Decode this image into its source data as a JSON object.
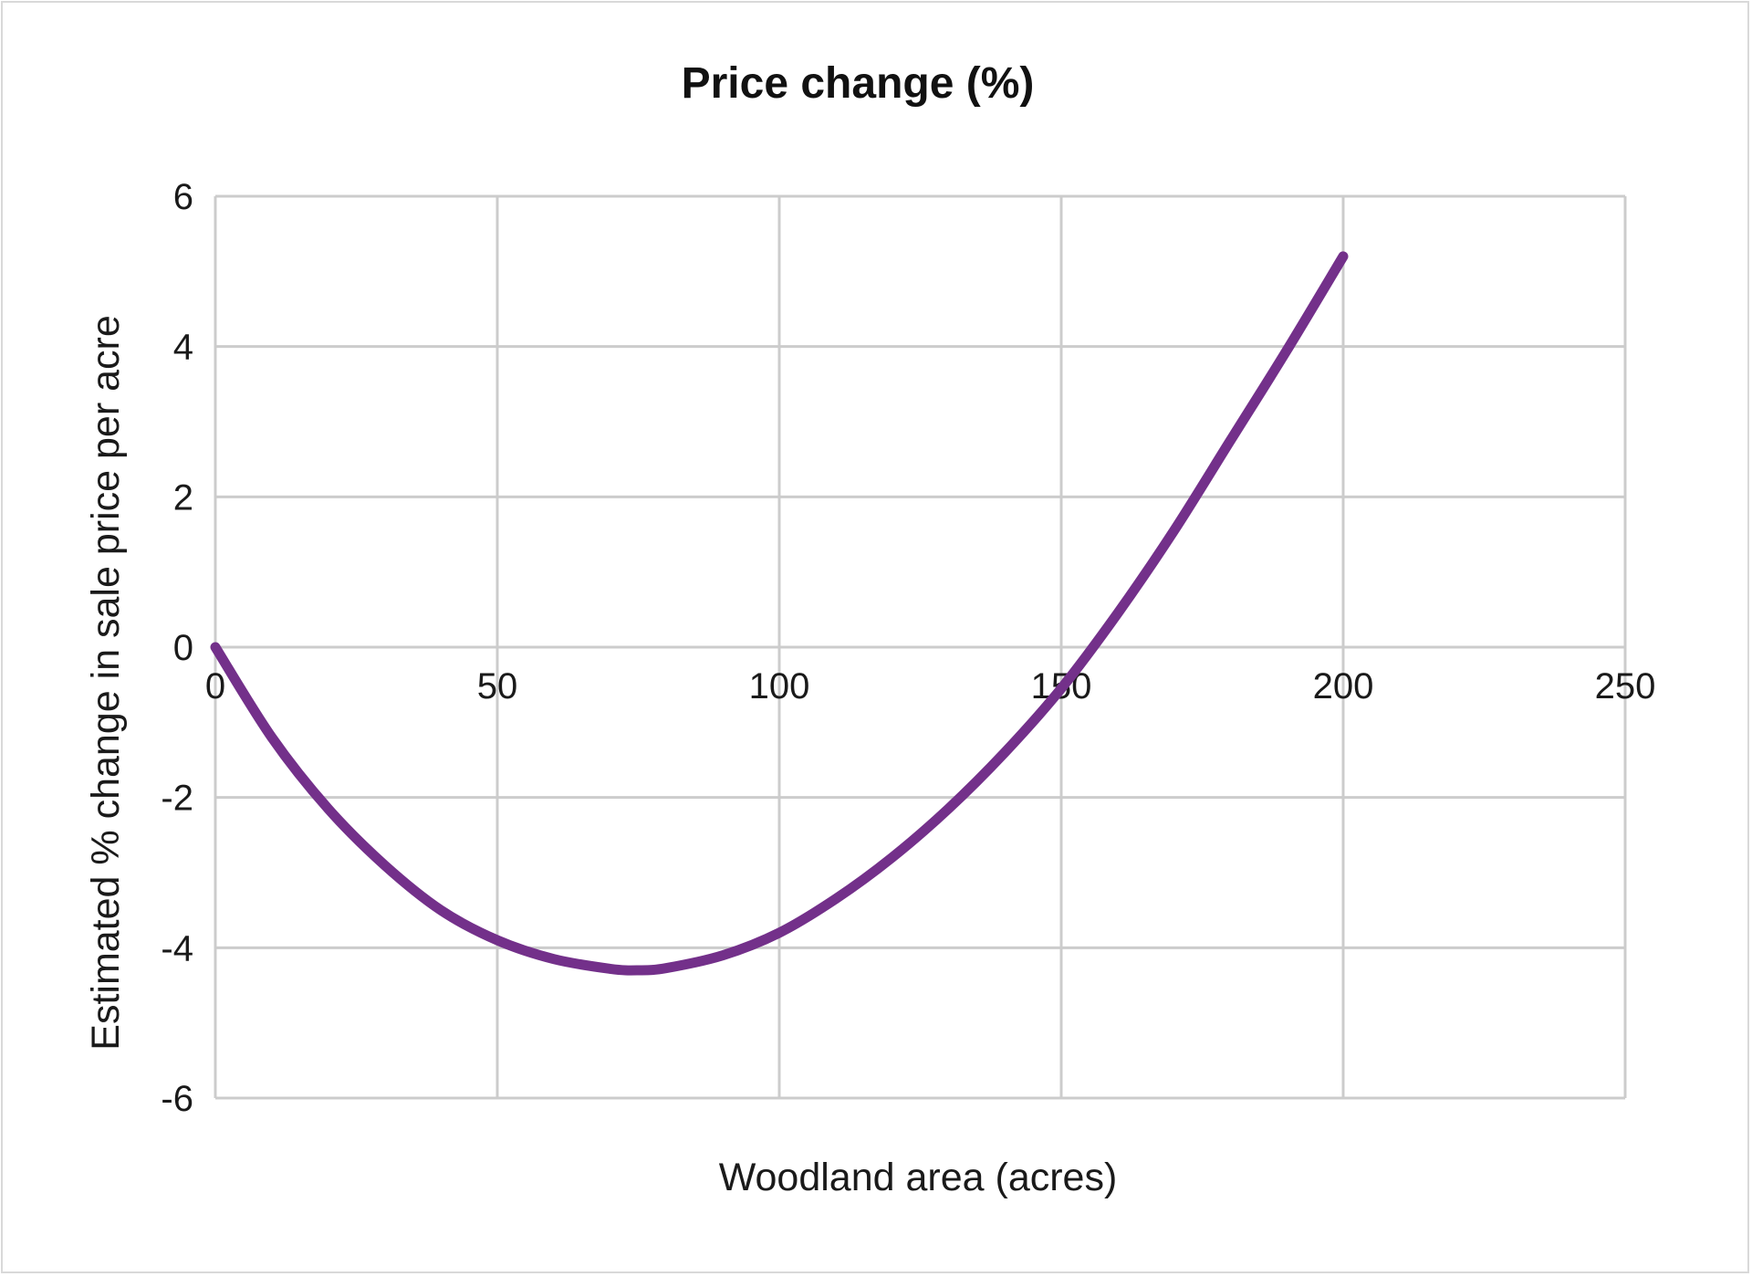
{
  "chart_data": {
    "type": "line",
    "title": "Price change (%)",
    "xlabel": "Woodland area (acres)",
    "ylabel": "Estimated % change in sale price per acre",
    "xlim": [
      0,
      250
    ],
    "ylim": [
      -6,
      6
    ],
    "x_ticks": [
      0,
      50,
      100,
      150,
      200,
      250
    ],
    "y_ticks": [
      6,
      4,
      2,
      0,
      -2,
      -4,
      -6
    ],
    "x_tick_labels": [
      "0",
      "50",
      "100",
      "150",
      "200",
      "250"
    ],
    "y_tick_labels": [
      "6",
      "4",
      "2",
      "0",
      "-2",
      "-4",
      "-6"
    ],
    "grid": true,
    "legend": "none",
    "series": [
      {
        "color": "#73308a",
        "x": [
          0,
          10,
          20,
          30,
          40,
          50,
          60,
          70,
          75,
          80,
          90,
          100,
          110,
          120,
          130,
          140,
          150,
          160,
          170,
          180,
          190,
          200
        ],
        "y": [
          0,
          -1.2,
          -2.15,
          -2.9,
          -3.5,
          -3.9,
          -4.15,
          -4.28,
          -4.3,
          -4.27,
          -4.1,
          -3.8,
          -3.35,
          -2.8,
          -2.15,
          -1.4,
          -0.55,
          0.45,
          1.55,
          2.75,
          3.95,
          5.2
        ]
      }
    ]
  }
}
